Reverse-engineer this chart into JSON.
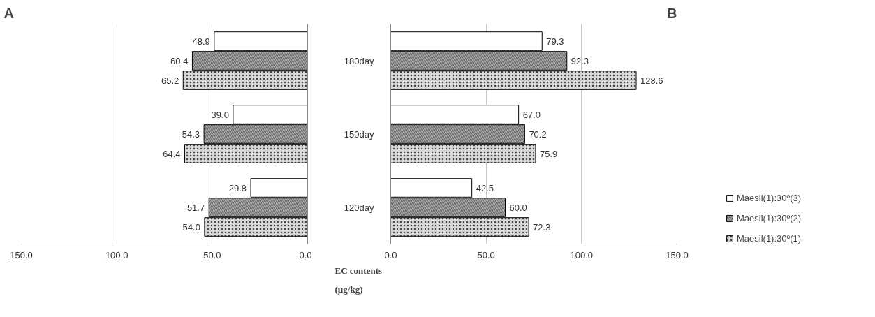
{
  "chart_data": [
    {
      "type": "bar",
      "title": "A",
      "orientation": "horizontal",
      "categories": [
        null,
        null,
        null
      ],
      "series": [
        {
          "color": "#ffffff",
          "values": [
            48.9,
            39.0,
            29.8
          ],
          "value_labels": [
            "48.9",
            "39.0",
            "29.8"
          ]
        },
        {
          "color": "#a6a6a6",
          "values": [
            60.4,
            54.3,
            51.7
          ],
          "value_labels": [
            "60.4",
            "54.3",
            "51.7"
          ]
        },
        {
          "color": "#d9d9d9",
          "values": [
            65.2,
            64.4,
            54.0
          ],
          "value_labels": [
            "65.2",
            "64.4",
            "54.0"
          ]
        }
      ],
      "xlim": [
        150,
        0
      ],
      "xticks": [
        {
          "value": 150,
          "label": "150.0"
        },
        {
          "value": 100,
          "label": "100.0"
        },
        {
          "value": 50,
          "label": "50.0"
        },
        {
          "value": 0,
          "label": "0.0"
        }
      ],
      "grid": "x"
    },
    {
      "type": "bar",
      "title": "B",
      "orientation": "horizontal",
      "categories": [
        "180day",
        "150day",
        "120day"
      ],
      "series": [
        {
          "name": "Maesil(1):30º(3)",
          "color": "#ffffff",
          "values": [
            79.3,
            67.0,
            42.5
          ],
          "value_labels": [
            "79.3",
            "67.0",
            "42.5"
          ]
        },
        {
          "name": "Maesil(1):30º(2)",
          "color": "#a6a6a6",
          "values": [
            92.3,
            70.2,
            60.0
          ],
          "value_labels": [
            "92.3",
            "70.2",
            "60.0"
          ]
        },
        {
          "name": "Maesil(1):30º(1)",
          "color": "#d9d9d9",
          "values": [
            128.6,
            75.9,
            72.3
          ],
          "value_labels": [
            "128.6",
            "75.9",
            "72.3"
          ]
        }
      ],
      "xlabel": "EC contents (µg/kg)",
      "xlim": [
        0,
        150
      ],
      "xticks": [
        {
          "value": 0,
          "label": "0.0"
        },
        {
          "value": 50,
          "label": "50.0"
        },
        {
          "value": 100,
          "label": "100.0"
        },
        {
          "value": 150,
          "label": "150.0"
        }
      ],
      "grid": "x",
      "legend": "right"
    }
  ]
}
